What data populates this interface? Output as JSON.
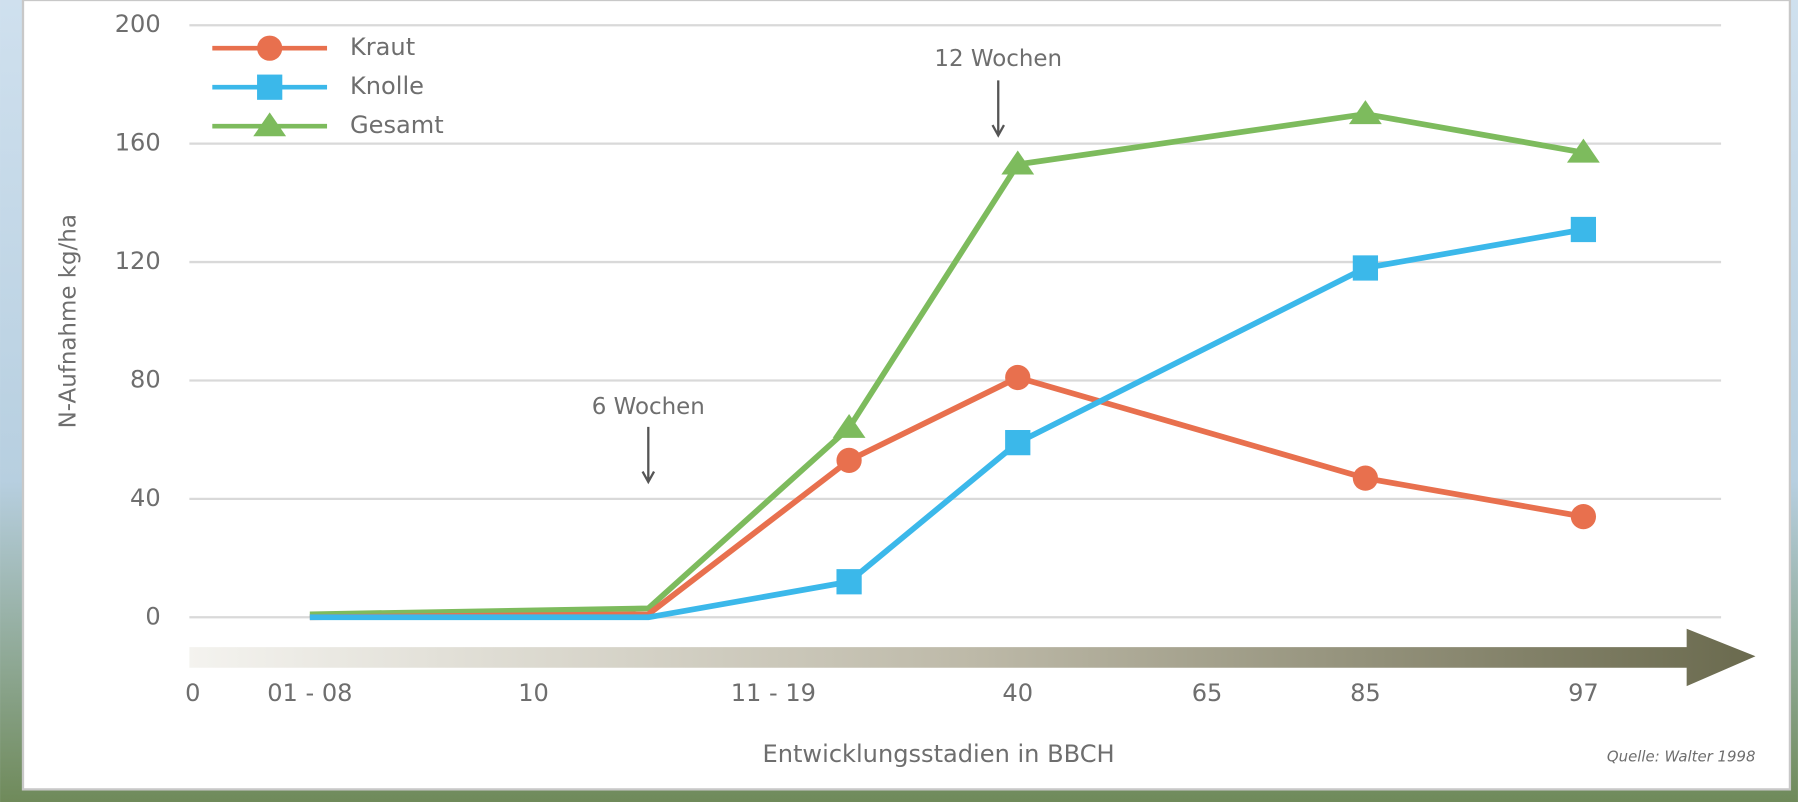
{
  "chart_data": {
    "type": "line",
    "y_label": "N-Aufnahme kg/ha",
    "x_label": "Entwicklungsstadien in BBCH",
    "source": "Quelle: Walter 1998",
    "categories": [
      "01 - 08",
      null,
      null,
      "40",
      "85",
      "97"
    ],
    "extra_stage_labels": [
      "0",
      "10",
      "11 - 19",
      "65"
    ],
    "series": [
      {
        "name": "Kraut",
        "color": "#e8704e",
        "marker": "circle",
        "values": [
          0,
          1,
          53,
          81,
          47,
          34
        ]
      },
      {
        "name": "Knolle",
        "color": "#3bb8ea",
        "marker": "square",
        "values": [
          0,
          0,
          12,
          59,
          118,
          131
        ]
      },
      {
        "name": "Gesamt",
        "color": "#7dbb5d",
        "marker": "triangle",
        "values": [
          1,
          3,
          64,
          153,
          170,
          157
        ]
      }
    ],
    "annotations": [
      "6 Wochen",
      "12 Wochen"
    ],
    "ylim": [
      0,
      200
    ],
    "yticks": [
      0,
      40,
      80,
      120,
      160,
      200
    ],
    "grid": true,
    "legend": "top-left"
  }
}
